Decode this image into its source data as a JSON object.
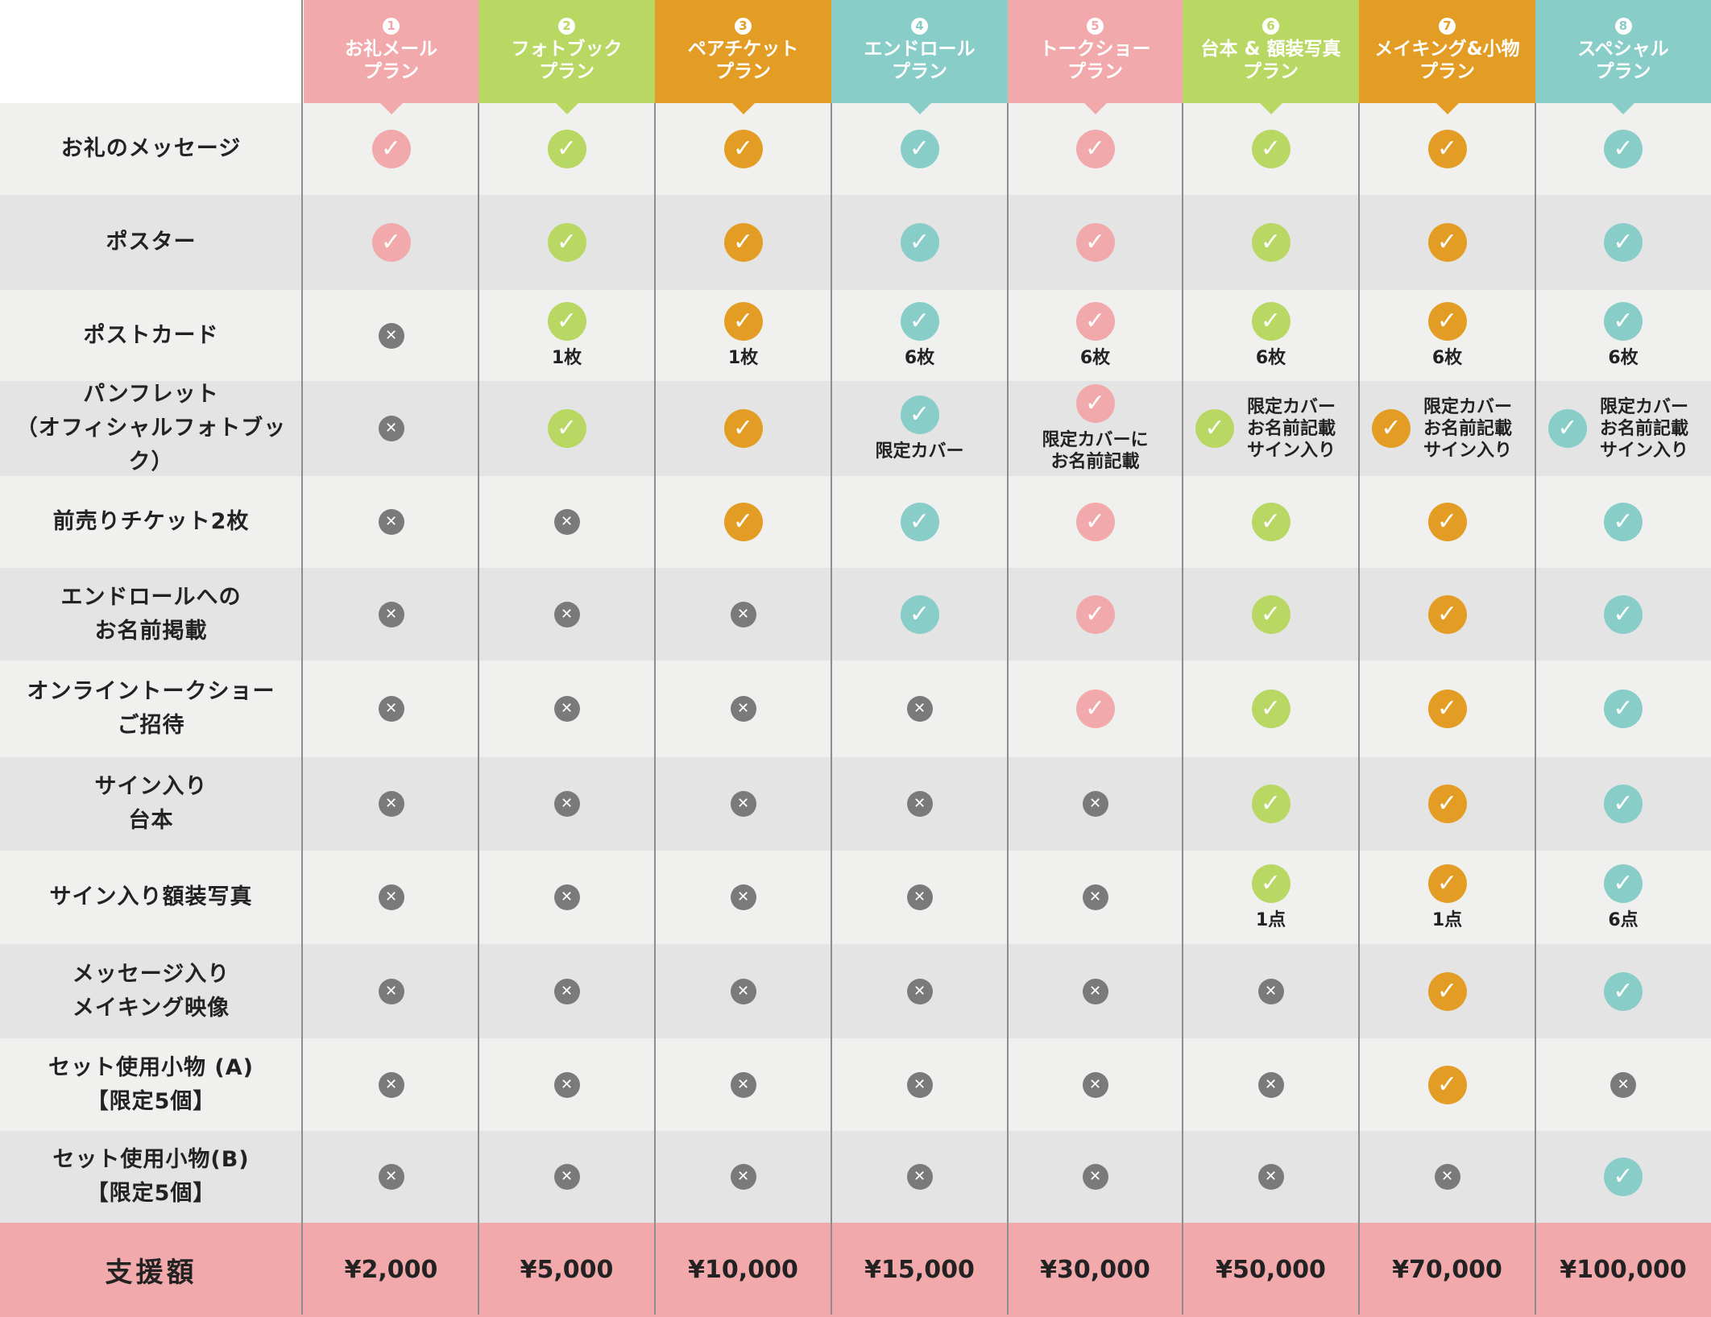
{
  "colors": {
    "pink": "#f2a9ab",
    "green": "#b9d763",
    "orange": "#e39d24",
    "teal": "#89cdc8",
    "gray_mark": "#7a7a7a",
    "row_light": "#f0f0ef",
    "row_dark": "#e4e4e4",
    "footer_bg": "#f2a9ab"
  },
  "plans": [
    {
      "num": "1",
      "name": "お礼メール\nプラン",
      "color": "pink",
      "price": "¥2,000"
    },
    {
      "num": "2",
      "name": "フォトブック\nプラン",
      "color": "green",
      "price": "¥5,000"
    },
    {
      "num": "3",
      "name": "ペアチケット\nプラン",
      "color": "orange",
      "price": "¥10,000"
    },
    {
      "num": "4",
      "name": "エンドロール\nプラン",
      "color": "teal",
      "price": "¥15,000"
    },
    {
      "num": "5",
      "name": "トークショー\nプラン",
      "color": "pink",
      "price": "¥30,000"
    },
    {
      "num": "6",
      "name": "台本 & 額装写真\nプラン",
      "color": "green",
      "price": "¥50,000"
    },
    {
      "num": "7",
      "name": "メイキング&小物\nプラン",
      "color": "orange",
      "price": "¥70,000"
    },
    {
      "num": "8",
      "name": "スペシャル\nプラン",
      "color": "teal",
      "price": "¥100,000"
    }
  ],
  "rows": [
    {
      "label": "お礼のメッセージ",
      "cells": [
        {
          "v": true
        },
        {
          "v": true
        },
        {
          "v": true
        },
        {
          "v": true
        },
        {
          "v": true
        },
        {
          "v": true
        },
        {
          "v": true
        },
        {
          "v": true
        }
      ]
    },
    {
      "label": "ポスター",
      "cells": [
        {
          "v": true
        },
        {
          "v": true
        },
        {
          "v": true
        },
        {
          "v": true
        },
        {
          "v": true
        },
        {
          "v": true
        },
        {
          "v": true
        },
        {
          "v": true
        }
      ]
    },
    {
      "label": "ポストカード",
      "cells": [
        {
          "v": false
        },
        {
          "v": true,
          "note": "1枚"
        },
        {
          "v": true,
          "note": "1枚"
        },
        {
          "v": true,
          "note": "6枚"
        },
        {
          "v": true,
          "note": "6枚"
        },
        {
          "v": true,
          "note": "6枚"
        },
        {
          "v": true,
          "note": "6枚"
        },
        {
          "v": true,
          "note": "6枚"
        }
      ]
    },
    {
      "label": "パンフレット\n（オフィシャルフォトブック）",
      "cells": [
        {
          "v": false
        },
        {
          "v": true
        },
        {
          "v": true
        },
        {
          "v": true,
          "note": "限定カバー"
        },
        {
          "v": true,
          "note": "限定カバーに\nお名前記載"
        },
        {
          "v": true,
          "note": "限定カバー\nお名前記載\nサイン入り",
          "side": true
        },
        {
          "v": true,
          "note": "限定カバー\nお名前記載\nサイン入り",
          "side": true
        },
        {
          "v": true,
          "note": "限定カバー\nお名前記載\nサイン入り",
          "side": true
        }
      ]
    },
    {
      "label": "前売りチケット2枚",
      "cells": [
        {
          "v": false
        },
        {
          "v": false
        },
        {
          "v": true
        },
        {
          "v": true
        },
        {
          "v": true
        },
        {
          "v": true
        },
        {
          "v": true
        },
        {
          "v": true
        }
      ]
    },
    {
      "label": "エンドロールへの\nお名前掲載",
      "cells": [
        {
          "v": false
        },
        {
          "v": false
        },
        {
          "v": false
        },
        {
          "v": true
        },
        {
          "v": true
        },
        {
          "v": true
        },
        {
          "v": true
        },
        {
          "v": true
        }
      ]
    },
    {
      "label": "オンライントークショー\nご招待",
      "cells": [
        {
          "v": false
        },
        {
          "v": false
        },
        {
          "v": false
        },
        {
          "v": false
        },
        {
          "v": true
        },
        {
          "v": true
        },
        {
          "v": true
        },
        {
          "v": true
        }
      ]
    },
    {
      "label": "サイン入り\n台本",
      "cells": [
        {
          "v": false
        },
        {
          "v": false
        },
        {
          "v": false
        },
        {
          "v": false
        },
        {
          "v": false
        },
        {
          "v": true
        },
        {
          "v": true
        },
        {
          "v": true
        }
      ]
    },
    {
      "label": "サイン入り額装写真",
      "cells": [
        {
          "v": false
        },
        {
          "v": false
        },
        {
          "v": false
        },
        {
          "v": false
        },
        {
          "v": false
        },
        {
          "v": true,
          "note": "1点"
        },
        {
          "v": true,
          "note": "1点"
        },
        {
          "v": true,
          "note": "6点"
        }
      ]
    },
    {
      "label": "メッセージ入り\nメイキング映像",
      "cells": [
        {
          "v": false
        },
        {
          "v": false
        },
        {
          "v": false
        },
        {
          "v": false
        },
        {
          "v": false
        },
        {
          "v": false
        },
        {
          "v": true
        },
        {
          "v": true
        }
      ]
    },
    {
      "label": "セット使用小物 (A)\n【限定5個】",
      "cells": [
        {
          "v": false
        },
        {
          "v": false
        },
        {
          "v": false
        },
        {
          "v": false
        },
        {
          "v": false
        },
        {
          "v": false
        },
        {
          "v": true
        },
        {
          "v": false
        }
      ]
    },
    {
      "label": "セット使用小物(B)\n【限定5個】",
      "cells": [
        {
          "v": false
        },
        {
          "v": false
        },
        {
          "v": false
        },
        {
          "v": false
        },
        {
          "v": false
        },
        {
          "v": false
        },
        {
          "v": false
        },
        {
          "v": true
        }
      ]
    }
  ],
  "footer": {
    "label": "支援額"
  },
  "icons": {
    "check": "check-circle-icon",
    "cross": "cross-circle-icon"
  }
}
